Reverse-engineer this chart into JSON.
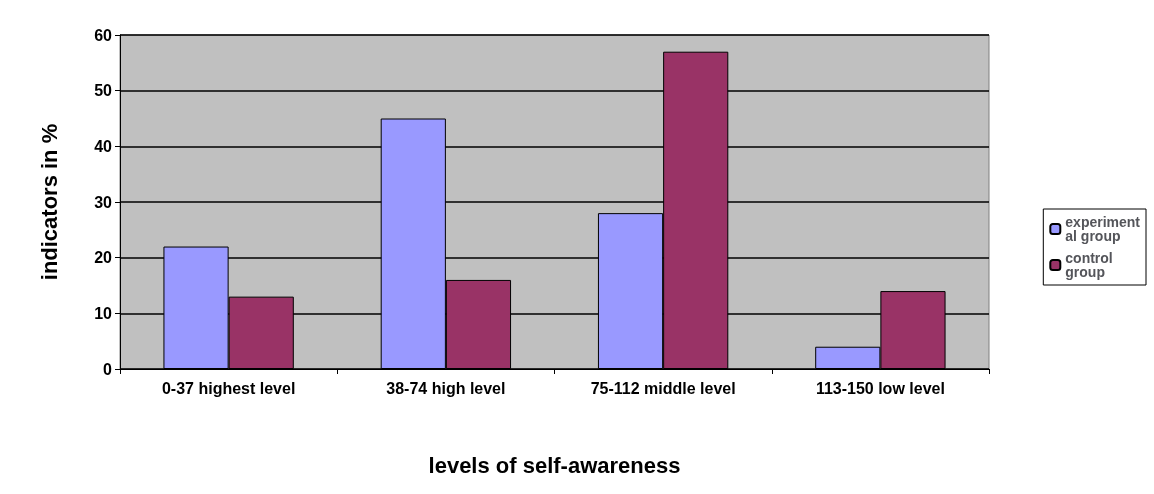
{
  "chart_data": {
    "type": "bar",
    "xlabel": "levels of self-awareness",
    "ylabel": "indicators in %",
    "categories": [
      "0-37 highest level",
      "38-74 high level",
      "75-112 middle level",
      "113-150 low level"
    ],
    "series": [
      {
        "name": "experimental group",
        "color": "#9999ff",
        "values": [
          22,
          45,
          28,
          4
        ]
      },
      {
        "name": "control group",
        "color": "#993366",
        "values": [
          13,
          16,
          57,
          14
        ]
      }
    ],
    "ylim": [
      0,
      60
    ],
    "yticks": [
      0,
      10,
      20,
      30,
      40,
      50,
      60
    ],
    "grid": "y",
    "legend": "right"
  }
}
